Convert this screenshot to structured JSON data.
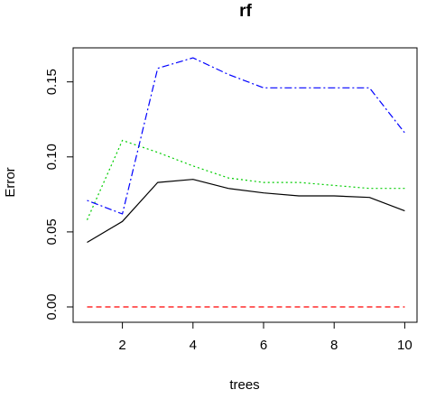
{
  "chart_data": {
    "type": "line",
    "title": "rf",
    "xlabel": "trees",
    "ylabel": "Error",
    "xlim": [
      1,
      10
    ],
    "ylim": [
      0,
      0.165
    ],
    "x_ticks": [
      2,
      4,
      6,
      8,
      10
    ],
    "y_ticks": [
      0.0,
      0.05,
      0.1,
      0.15
    ],
    "y_tick_labels": [
      "0.00",
      "0.05",
      "0.10",
      "0.15"
    ],
    "grid": false,
    "x": [
      1,
      2,
      3,
      4,
      5,
      6,
      7,
      8,
      9,
      10
    ],
    "series": [
      {
        "color": "#000000",
        "style": "solid",
        "values": [
          0.043,
          0.057,
          0.083,
          0.085,
          0.079,
          0.076,
          0.074,
          0.074,
          0.073,
          0.064
        ]
      },
      {
        "color": "#ff0000",
        "style": "dashed",
        "values": [
          0,
          0,
          0,
          0,
          0,
          0,
          0,
          0,
          0,
          0
        ]
      },
      {
        "color": "#00cd00",
        "style": "dotted",
        "values": [
          0.058,
          0.111,
          0.103,
          0.094,
          0.086,
          0.083,
          0.083,
          0.081,
          0.079,
          0.079
        ]
      },
      {
        "color": "#0000ff",
        "style": "dotdash",
        "values": [
          0.071,
          0.062,
          0.159,
          0.166,
          0.155,
          0.146,
          0.146,
          0.146,
          0.146,
          0.116
        ]
      }
    ]
  }
}
